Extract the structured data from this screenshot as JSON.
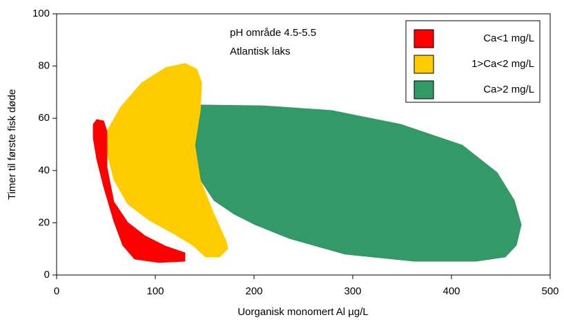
{
  "chart_data": {
    "type": "region",
    "xlabel": "Uorganisk monomert Al µg/L",
    "ylabel": "Timer til første fisk døde",
    "annotations": [
      "pH område 4.5-5.5",
      "Atlantisk laks"
    ],
    "xlim": [
      0,
      500
    ],
    "xticks": [
      0,
      100,
      200,
      300,
      400,
      500
    ],
    "ylim": [
      0,
      100
    ],
    "yticks": [
      0,
      20,
      40,
      60,
      80,
      100
    ],
    "legend": "upper right",
    "series": [
      {
        "name": "Ca<1 mg/L",
        "color": "#ff0000",
        "x": [
          37.1,
          40.6,
          47.6,
          51,
          51,
          58,
          72,
          89.5,
          110.5,
          130,
          130,
          103.5,
          79,
          67,
          58,
          47.6,
          40.6,
          37.1
        ],
        "y": [
          57.7,
          59.5,
          59,
          55,
          41.3,
          28,
          20.1,
          15,
          11,
          8.5,
          5.3,
          4.8,
          6.1,
          11.4,
          20.6,
          33.9,
          44.4,
          52.4
        ]
      },
      {
        "name": "1>Ca<2 mg/L",
        "color": "#ffcc00",
        "x": [
          51,
          65,
          86,
          110.5,
          130,
          142,
          147,
          145.5,
          140,
          145.5,
          159.4,
          172,
          173.4,
          165,
          151,
          138,
          121,
          93,
          72,
          58,
          51
        ],
        "y": [
          55,
          64.3,
          73.5,
          79.4,
          81,
          78.8,
          73.5,
          63,
          49.7,
          36.5,
          23.3,
          12.7,
          10,
          6.9,
          6.9,
          11.4,
          15.3,
          21.2,
          27.2,
          36.5,
          47
        ]
      },
      {
        "name": "Ca>2 mg/L",
        "color": "#339966",
        "x": [
          142,
          208.4,
          278.3,
          348.3,
          411,
          446.2,
          463.6,
          470.6,
          465.7,
          454.5,
          425,
          362,
          292,
          236,
          201,
          180,
          159.4,
          145.5,
          140,
          140.6
        ],
        "y": [
          65.1,
          64.8,
          63,
          57.7,
          49.7,
          39.2,
          28.6,
          19.3,
          11.4,
          6.9,
          5.3,
          5.3,
          8,
          14,
          19.3,
          23.3,
          28.6,
          36.5,
          47,
          57.7
        ]
      }
    ]
  }
}
